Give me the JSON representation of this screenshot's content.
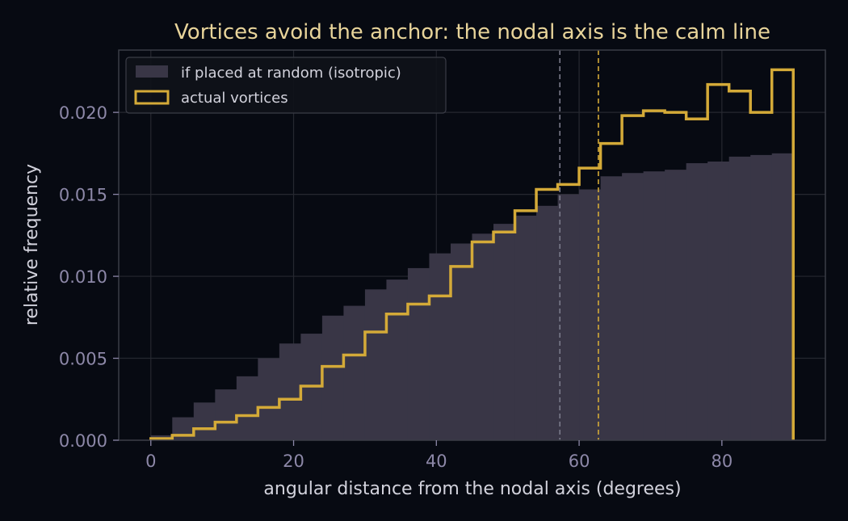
{
  "colors": {
    "background": "#070a12",
    "isotropic_fill": "#393646",
    "actual_line": "#d4aa38",
    "grid": "#262830",
    "vline_isotropic": "#7a7a8a",
    "vline_actual": "#d4aa38"
  },
  "chart_data": {
    "type": "bar",
    "title": "Vortices avoid the anchor: the nodal axis is the calm line",
    "xlabel": "angular distance from the nodal axis  (degrees)",
    "ylabel": "relative frequency",
    "xlim": [
      -4.5,
      94.5
    ],
    "ylim": [
      0,
      0.0238
    ],
    "xticks": [
      0,
      20,
      40,
      60,
      80
    ],
    "xtick_labels": [
      "0",
      "20",
      "40",
      "60",
      "80"
    ],
    "yticks": [
      0,
      0.005,
      0.01,
      0.015,
      0.02
    ],
    "ytick_labels": [
      "0.000",
      "0.005",
      "0.010",
      "0.015",
      "0.020"
    ],
    "grid": true,
    "legend_position": "top-left",
    "bin_edges": [
      0,
      3,
      6,
      9,
      12,
      15,
      18,
      21,
      24,
      27,
      30,
      33,
      36,
      39,
      42,
      45,
      48,
      51,
      54,
      57,
      60,
      63,
      66,
      69,
      72,
      75,
      78,
      81,
      84,
      87,
      90
    ],
    "series": [
      {
        "name": "if placed at random (isotropic)",
        "style": "filled histogram",
        "values": [
          0.0003,
          0.0014,
          0.0023,
          0.0031,
          0.0039,
          0.005,
          0.0059,
          0.0065,
          0.0076,
          0.0082,
          0.0092,
          0.0098,
          0.0105,
          0.0114,
          0.012,
          0.0126,
          0.0132,
          0.0137,
          0.0143,
          0.015,
          0.0153,
          0.0161,
          0.0163,
          0.0164,
          0.0165,
          0.0169,
          0.017,
          0.0173,
          0.0174,
          0.0175
        ]
      },
      {
        "name": "actual vortices",
        "style": "step outline",
        "values": [
          0.0001,
          0.0003,
          0.0007,
          0.0011,
          0.0015,
          0.002,
          0.0025,
          0.0033,
          0.0045,
          0.0052,
          0.0066,
          0.0077,
          0.0083,
          0.0088,
          0.0106,
          0.0121,
          0.0127,
          0.014,
          0.0153,
          0.0156,
          0.0166,
          0.0181,
          0.0198,
          0.0201,
          0.02,
          0.0196,
          0.0217,
          0.0213,
          0.02,
          0.0226
        ]
      }
    ],
    "reference_lines": [
      {
        "x": 57.3,
        "style": "dashed",
        "color": "#7a7a8a"
      },
      {
        "x": 62.7,
        "style": "dashed",
        "color": "#d4aa38"
      }
    ]
  }
}
